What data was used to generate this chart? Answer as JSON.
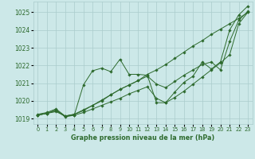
{
  "xlabel": "Graphe pression niveau de la mer (hPa)",
  "xlim": [
    -0.5,
    23.5
  ],
  "ylim": [
    1018.7,
    1025.6
  ],
  "yticks": [
    1019,
    1020,
    1021,
    1022,
    1023,
    1024,
    1025
  ],
  "xticks": [
    0,
    1,
    2,
    3,
    4,
    5,
    6,
    7,
    8,
    9,
    10,
    11,
    12,
    13,
    14,
    15,
    16,
    17,
    18,
    19,
    20,
    21,
    22,
    23
  ],
  "bg_color": "#cce8e8",
  "grid_color": "#aacccc",
  "line_color": "#2d6a2d",
  "series": [
    [
      1019.2,
      1019.3,
      1019.5,
      1019.1,
      1019.2,
      1020.9,
      1021.7,
      1021.85,
      1021.65,
      1022.35,
      1021.5,
      1021.5,
      1021.45,
      1019.9,
      1019.9,
      1020.5,
      1021.05,
      1021.4,
      1022.2,
      1021.8,
      1022.2,
      1024.0,
      1024.85,
      1025.35
    ],
    [
      1019.25,
      1019.35,
      1019.55,
      1019.15,
      1019.25,
      1019.5,
      1019.75,
      1020.0,
      1020.35,
      1020.65,
      1020.9,
      1021.15,
      1021.5,
      1021.75,
      1022.05,
      1022.4,
      1022.75,
      1023.1,
      1023.4,
      1023.75,
      1024.05,
      1024.35,
      1024.65,
      1025.0
    ],
    [
      1019.2,
      1019.3,
      1019.4,
      1019.15,
      1019.2,
      1019.35,
      1019.55,
      1019.75,
      1019.95,
      1020.15,
      1020.4,
      1020.6,
      1020.8,
      1020.15,
      1019.9,
      1020.2,
      1020.55,
      1020.95,
      1021.35,
      1021.75,
      1022.15,
      1022.6,
      1024.35,
      1025.0
    ],
    [
      1019.2,
      1019.3,
      1019.45,
      1019.15,
      1019.25,
      1019.45,
      1019.75,
      1020.05,
      1020.35,
      1020.65,
      1020.9,
      1021.15,
      1021.4,
      1020.95,
      1020.75,
      1021.1,
      1021.45,
      1021.75,
      1022.05,
      1022.2,
      1021.75,
      1023.35,
      1024.55,
      1025.05
    ]
  ]
}
